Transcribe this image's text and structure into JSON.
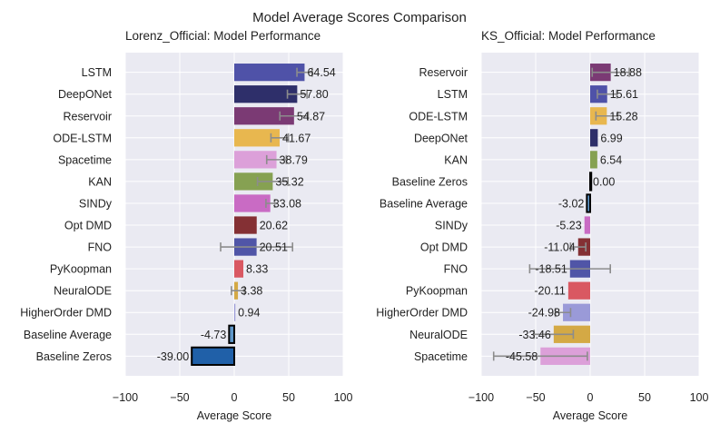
{
  "figure": {
    "suptitle": "Model Average Scores Comparison"
  },
  "chart_data": [
    {
      "type": "bar",
      "orientation": "horizontal",
      "title": "Lorenz_Official: Model Performance",
      "xlabel": "Average Score",
      "ylabel": "",
      "xlim": [
        -100,
        100
      ],
      "xticks": [
        -100,
        -50,
        0,
        50,
        100
      ],
      "xtick_labels": [
        "−100",
        "−50",
        "0",
        "50",
        "100"
      ],
      "grid": true,
      "categories": [
        "LSTM",
        "DeepONet",
        "Reservoir",
        "ODE-LSTM",
        "Spacetime",
        "KAN",
        "SINDy",
        "Opt DMD",
        "FNO",
        "PyKoopman",
        "NeuralODE",
        "HigherOrder DMD",
        "Baseline Average",
        "Baseline Zeros"
      ],
      "values": [
        64.54,
        57.8,
        54.87,
        41.67,
        38.79,
        35.32,
        33.08,
        20.62,
        20.51,
        8.33,
        3.38,
        0.94,
        -4.73,
        -39.0
      ],
      "value_labels": [
        "64.54",
        "57.80",
        "54.87",
        "41.67",
        "38.79",
        "35.32",
        "33.08",
        "20.62",
        "20.51",
        "8.33",
        "3.38",
        "0.94",
        "-4.73",
        "-39.00"
      ],
      "error": [
        7,
        9,
        13,
        8,
        9,
        14,
        4,
        0,
        33,
        0,
        6,
        0,
        0,
        0
      ],
      "colors": [
        "#4f52a8",
        "#2e2f6a",
        "#7b3a74",
        "#e8b74f",
        "#dca0d9",
        "#86a152",
        "#c96bc4",
        "#843034",
        "#5055a7",
        "#d95862",
        "#d4a945",
        "#9a9ad8",
        "#5f97c9",
        "#2060a8"
      ],
      "highlighted": [
        "Baseline Average",
        "Baseline Zeros"
      ]
    },
    {
      "type": "bar",
      "orientation": "horizontal",
      "title": "KS_Official: Model Performance",
      "xlabel": "Average Score",
      "ylabel": "",
      "xlim": [
        -100,
        100
      ],
      "xticks": [
        -100,
        -50,
        0,
        50,
        100
      ],
      "xtick_labels": [
        "−100",
        "−50",
        "0",
        "50",
        "100"
      ],
      "grid": true,
      "categories": [
        "Reservoir",
        "LSTM",
        "ODE-LSTM",
        "DeepONet",
        "KAN",
        "Baseline Zeros",
        "Baseline Average",
        "SINDy",
        "Opt DMD",
        "FNO",
        "PyKoopman",
        "HigherOrder DMD",
        "NeuralODE",
        "Spacetime"
      ],
      "values": [
        18.88,
        15.61,
        15.28,
        6.99,
        6.54,
        0.0,
        -3.02,
        -5.23,
        -11.04,
        -18.51,
        -20.11,
        -24.98,
        -33.46,
        -45.58
      ],
      "value_labels": [
        "18.88",
        "15.61",
        "15.28",
        "6.99",
        "6.54",
        "0.00",
        "-3.02",
        "-5.23",
        "-11.04",
        "-18.51",
        "-20.11",
        "-24.98",
        "-33.46",
        "-45.58"
      ],
      "error": [
        17,
        9,
        10,
        0,
        0,
        0,
        0,
        0,
        7,
        37,
        0,
        7,
        18,
        43
      ],
      "colors": [
        "#7b3a74",
        "#4f52a8",
        "#e8b74f",
        "#2e2f6a",
        "#86a152",
        "#2060a8",
        "#5f97c9",
        "#c96bc4",
        "#843034",
        "#5055a7",
        "#d95862",
        "#9a9ad8",
        "#d4a945",
        "#dca0d9"
      ],
      "highlighted": [
        "Baseline Zeros",
        "Baseline Average"
      ]
    }
  ]
}
